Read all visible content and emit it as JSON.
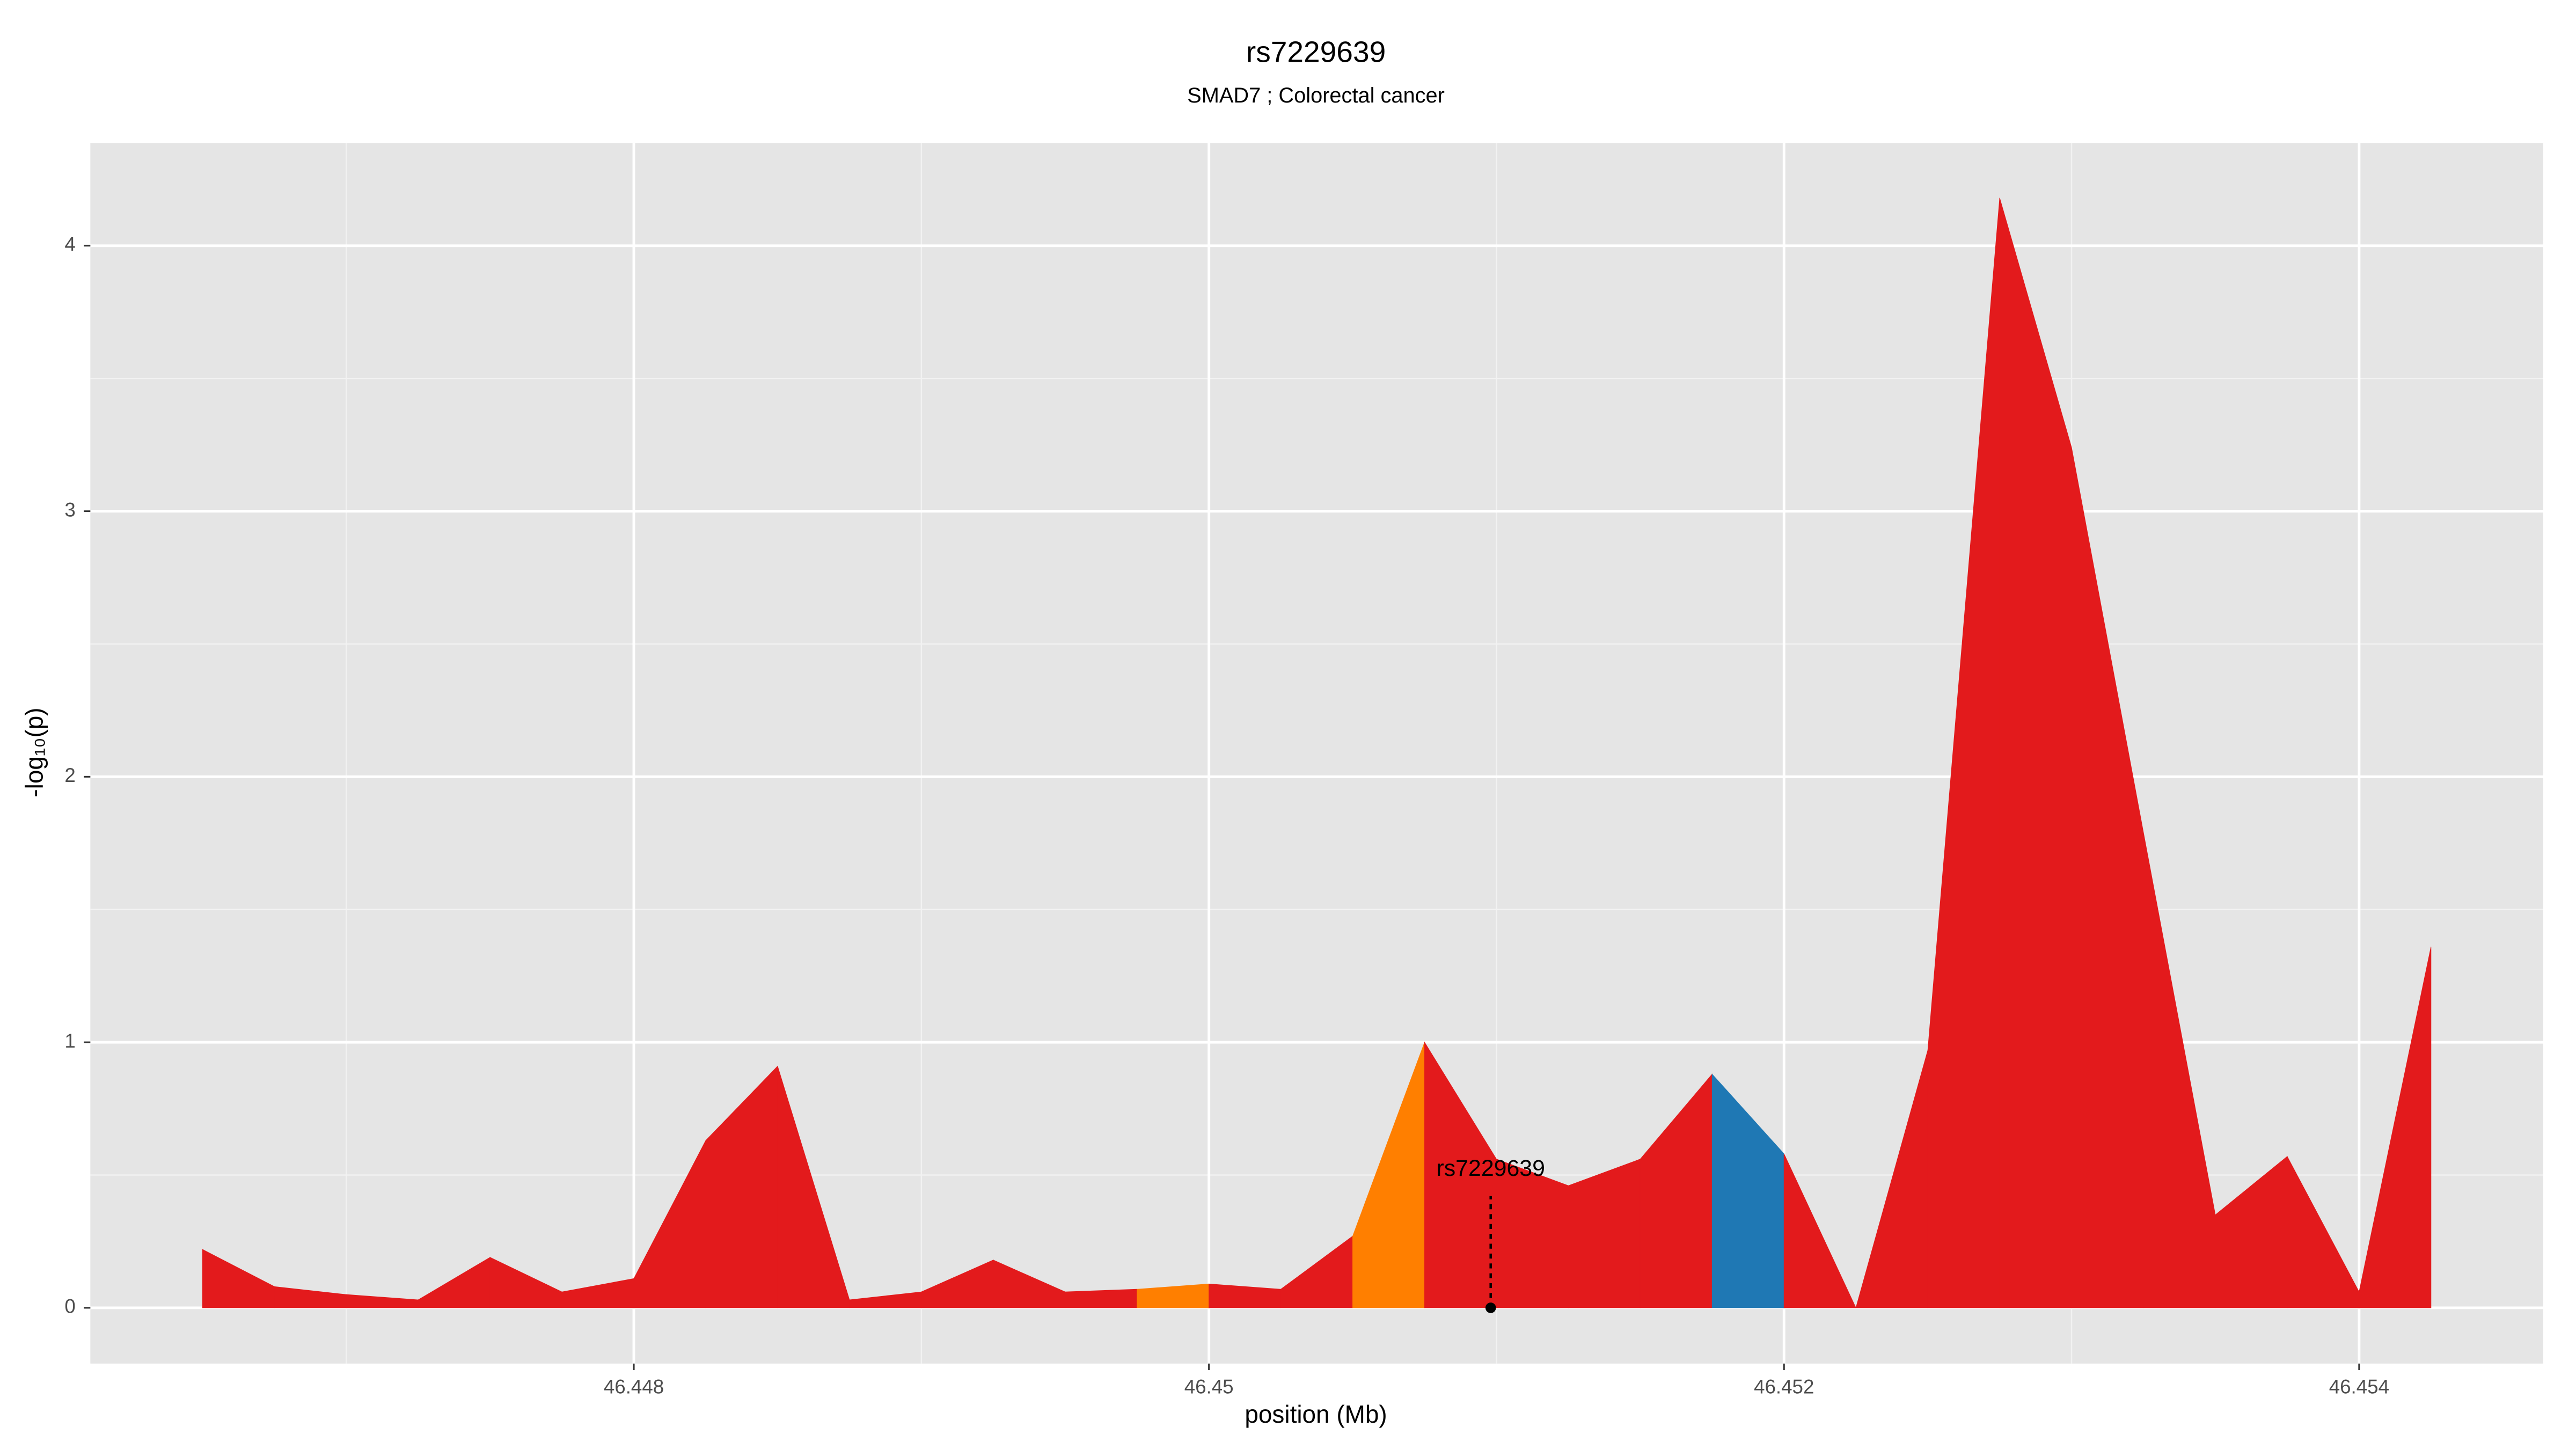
{
  "chart_data": {
    "type": "area",
    "title": "rs7229639",
    "subtitle": "SMAD7 ; Colorectal cancer",
    "x_label": "position (Mb)",
    "y_label": "-log₁₀(p)",
    "x": [
      46.4465,
      46.44675,
      46.447,
      46.44725,
      46.4475,
      46.44775,
      46.448,
      46.44825,
      46.4485,
      46.44875,
      46.449,
      46.44925,
      46.4495,
      46.44975,
      46.45,
      46.45025,
      46.4505,
      46.45075,
      46.451,
      46.45125,
      46.4515,
      46.45175,
      46.452,
      46.45225,
      46.4525,
      46.45275,
      46.453,
      46.45325,
      46.4535,
      46.45375,
      46.454,
      46.45425
    ],
    "series": [
      {
        "values": [
          0.22,
          0.08,
          0.05,
          0.03,
          0.19,
          0.06,
          0.11,
          0.63,
          0.91,
          0.03,
          0.06,
          0.18,
          0.06,
          0.07,
          0.09,
          0.07,
          0.27,
          1.0,
          0.56,
          0.46,
          0.56,
          0.88,
          0.58,
          0.0,
          0.97,
          4.18,
          3.24,
          1.79,
          0.35,
          0.57,
          0.06,
          1.36
        ],
        "fill_colors": [
          "#e31a1c",
          "#e31a1c",
          "#e31a1c",
          "#e31a1c",
          "#e31a1c",
          "#e31a1c",
          "#e31a1c",
          "#e31a1c",
          "#e31a1c",
          "#e31a1c",
          "#e31a1c",
          "#e31a1c",
          "#e31a1c",
          "#ff7f00",
          "#e31a1c",
          "#e31a1c",
          "#ff7f00",
          "#e31a1c",
          "#e31a1c",
          "#e31a1c",
          "#e31a1c",
          "#1f78b4",
          "#e31a1c",
          "#e31a1c",
          "#e31a1c",
          "#e31a1c",
          "#e31a1c",
          "#e31a1c",
          "#e31a1c",
          "#e31a1c",
          "#e31a1c"
        ]
      }
    ],
    "annotation": {
      "label": "rs7229639",
      "x": 46.45098,
      "y": 0
    },
    "xlim": [
      46.44611,
      46.45464
    ],
    "ylim": [
      -0.21,
      4.387
    ],
    "xticks": [
      46.448,
      46.45,
      46.452,
      46.454
    ],
    "yticks": [
      0,
      1,
      2,
      3,
      4
    ],
    "x_minor_grid": [
      46.447,
      46.449,
      46.451,
      46.453
    ],
    "y_minor_grid": [
      0.5,
      1.5,
      2.5,
      3.5
    ],
    "grid": true
  }
}
